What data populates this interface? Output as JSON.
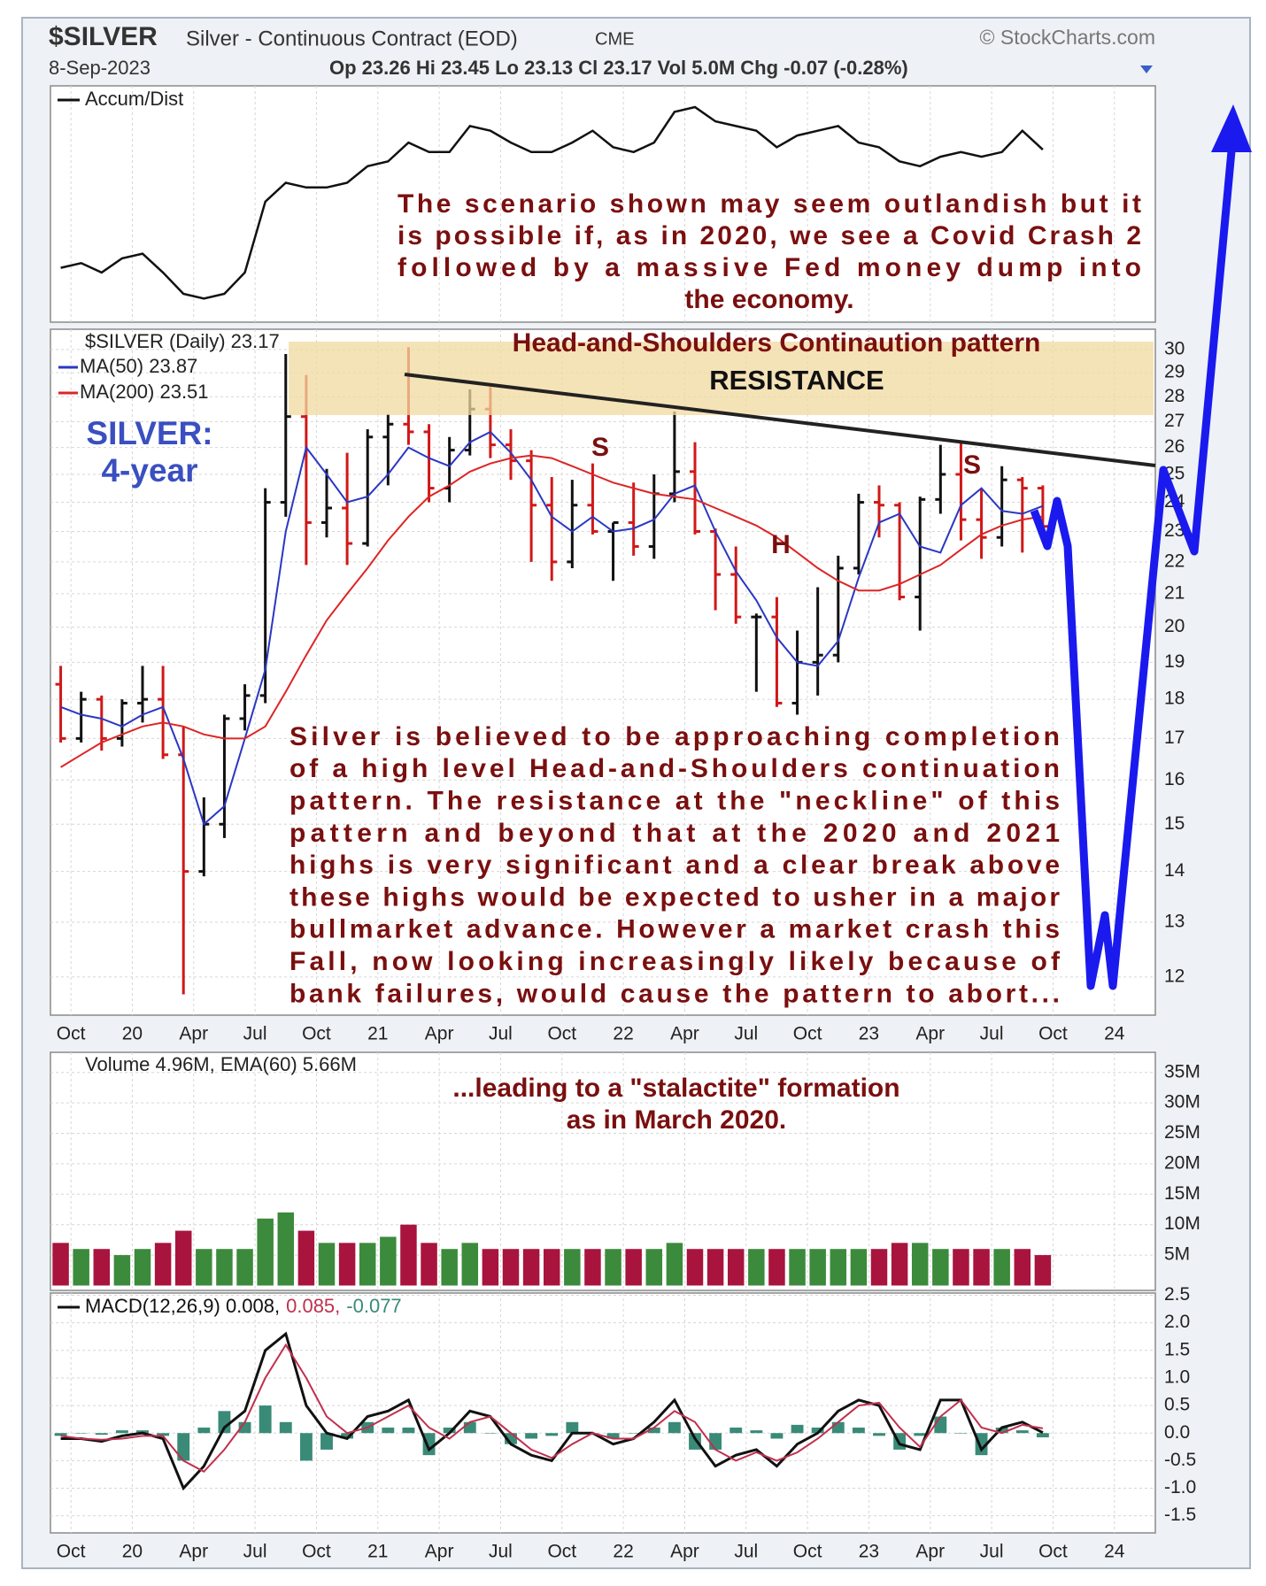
{
  "header": {
    "symbol": "$SILVER",
    "description": "Silver - Continuous Contract (EOD)",
    "exchange": "CME",
    "source": "© StockCharts.com",
    "date": "8-Sep-2023",
    "quote": "Op 23.26 Hi 23.45 Lo 23.13 Cl 23.17 Vol 5.0M Chg -0.07 (-0.28%)"
  },
  "annotations": {
    "scenario": [
      "The scenario shown may seem outlandish but it",
      "is possible if, as in 2020, we see a Covid Crash 2",
      "followed by a massive Fed money dump into",
      "the economy."
    ],
    "pattern_title": "Head-and-Shoulders Continaution pattern",
    "resistance": "RESISTANCE",
    "left_shoulder": "S",
    "head": "H",
    "right_shoulder": "S",
    "silver_label": [
      "SILVER:",
      "4-year"
    ],
    "commentary": [
      "Silver is believed to be approaching completion",
      "of a high level Head-and-Shoulders continuation",
      "pattern. The resistance at the \"neckline\" of this",
      "pattern and beyond that at the 2020 and 2021",
      "highs is very significant and a clear break above",
      "these highs would be expected to usher in a major",
      "bullmarket advance. However a market crash this",
      "Fall, now looking increasingly likely because of",
      "bank failures, would cause the pattern to abort..."
    ],
    "stalactite": [
      "...leading to a \"stalactite\" formation",
      "as in March 2020."
    ]
  },
  "time_axis": {
    "x": [
      "2019-09",
      "2019-10",
      "2019-11",
      "2019-12",
      "2020-01",
      "2020-02",
      "2020-03",
      "2020-04",
      "2020-05",
      "2020-06",
      "2020-07",
      "2020-08",
      "2020-09",
      "2020-10",
      "2020-11",
      "2020-12",
      "2021-01",
      "2021-02",
      "2021-03",
      "2021-04",
      "2021-05",
      "2021-06",
      "2021-07",
      "2021-08",
      "2021-09",
      "2021-10",
      "2021-11",
      "2021-12",
      "2022-01",
      "2022-02",
      "2022-03",
      "2022-04",
      "2022-05",
      "2022-06",
      "2022-07",
      "2022-08",
      "2022-09",
      "2022-10",
      "2022-11",
      "2022-12",
      "2023-01",
      "2023-02",
      "2023-03",
      "2023-04",
      "2023-05",
      "2023-06",
      "2023-07",
      "2023-08",
      "2023-09"
    ],
    "xlim": [
      "2019-09",
      "2024-03"
    ],
    "xticks": [
      {
        "value": "2019-10",
        "label": "Oct"
      },
      {
        "value": "2020-01",
        "label": "20"
      },
      {
        "value": "2020-04",
        "label": "Apr"
      },
      {
        "value": "2020-07",
        "label": "Jul"
      },
      {
        "value": "2020-10",
        "label": "Oct"
      },
      {
        "value": "2021-01",
        "label": "21"
      },
      {
        "value": "2021-04",
        "label": "Apr"
      },
      {
        "value": "2021-07",
        "label": "Jul"
      },
      {
        "value": "2021-10",
        "label": "Oct"
      },
      {
        "value": "2022-01",
        "label": "22"
      },
      {
        "value": "2022-04",
        "label": "Apr"
      },
      {
        "value": "2022-07",
        "label": "Jul"
      },
      {
        "value": "2022-10",
        "label": "Oct"
      },
      {
        "value": "2023-01",
        "label": "23"
      },
      {
        "value": "2023-04",
        "label": "Apr"
      },
      {
        "value": "2023-07",
        "label": "Jul"
      },
      {
        "value": "2023-10",
        "label": "Oct"
      },
      {
        "value": "2024-01",
        "label": "24"
      }
    ]
  },
  "chart_data": [
    {
      "type": "line",
      "name": "Accum/Dist",
      "color": "#111111",
      "ylim": [
        0,
        100
      ],
      "values": [
        23,
        25,
        21,
        27,
        29,
        21,
        12,
        10,
        12,
        21,
        51,
        59,
        57,
        57,
        59,
        66,
        68,
        76,
        72,
        72,
        83,
        81,
        76,
        72,
        72,
        76,
        81,
        74,
        72,
        76,
        89,
        91,
        85,
        83,
        81,
        74,
        79,
        81,
        83,
        76,
        74,
        68,
        66,
        70,
        72,
        70,
        72,
        81,
        73
      ]
    },
    {
      "type": "ohlc",
      "name": "$SILVER (Daily) 23.17",
      "log_scale": true,
      "grid": true,
      "up_color": "#111111",
      "down_color": "#d01818",
      "ylim": [
        11.35,
        30.9
      ],
      "yticks": [
        12,
        13,
        14,
        15,
        16,
        17,
        18,
        19,
        20,
        21,
        22,
        23,
        24,
        25,
        26,
        27,
        28,
        29,
        30
      ],
      "open": [
        18.4,
        17.0,
        18.0,
        17.0,
        17.9,
        18.0,
        16.6,
        14.0,
        15.0,
        17.5,
        18.1,
        24.0,
        27.2,
        23.3,
        23.8,
        22.6,
        26.4,
        26.9,
        26.6,
        24.5,
        25.9,
        27.5,
        26.1,
        25.5,
        23.9,
        22.0,
        23.9,
        23.0,
        23.3,
        22.5,
        24.3,
        25.1,
        23.0,
        21.6,
        20.3,
        20.3,
        17.9,
        19.0,
        19.2,
        21.8,
        24.0,
        23.9,
        20.9,
        24.1,
        25.0,
        23.4,
        22.8,
        24.8,
        24.5
      ],
      "high": [
        18.9,
        18.2,
        18.1,
        18.0,
        18.9,
        18.9,
        17.3,
        15.6,
        17.6,
        18.4,
        24.5,
        29.8,
        28.9,
        25.2,
        25.8,
        26.7,
        27.3,
        30.1,
        26.9,
        26.4,
        28.3,
        28.4,
        26.7,
        25.9,
        24.9,
        24.8,
        25.4,
        23.3,
        24.7,
        25.0,
        27.4,
        26.2,
        23.1,
        22.5,
        20.4,
        20.9,
        19.9,
        21.2,
        22.2,
        24.3,
        24.6,
        24.0,
        24.2,
        26.1,
        26.2,
        24.5,
        25.3,
        24.9,
        24.6
      ],
      "low": [
        16.9,
        16.9,
        16.7,
        16.8,
        17.4,
        16.5,
        11.7,
        13.9,
        14.7,
        17.2,
        17.9,
        23.5,
        21.9,
        22.8,
        21.9,
        22.5,
        24.6,
        26.1,
        24.0,
        24.0,
        25.7,
        25.6,
        24.8,
        22.0,
        21.4,
        21.8,
        22.9,
        21.4,
        22.2,
        22.1,
        24.0,
        22.9,
        20.5,
        20.1,
        18.2,
        17.8,
        17.6,
        18.1,
        19.0,
        21.6,
        22.8,
        20.8,
        19.9,
        23.6,
        22.7,
        22.1,
        22.5,
        22.3,
        23.1
      ],
      "close": [
        17.0,
        18.0,
        17.0,
        17.9,
        18.0,
        16.6,
        14.0,
        15.0,
        17.5,
        18.1,
        24.0,
        27.2,
        23.3,
        23.8,
        22.6,
        26.4,
        26.9,
        26.6,
        24.5,
        25.9,
        27.5,
        26.1,
        25.5,
        23.9,
        22.0,
        23.9,
        23.0,
        23.3,
        22.5,
        24.3,
        25.1,
        23.0,
        21.6,
        20.3,
        20.3,
        17.9,
        19.0,
        19.2,
        21.8,
        24.0,
        23.9,
        20.9,
        24.1,
        25.0,
        23.4,
        22.8,
        24.8,
        24.5,
        23.17
      ],
      "series": [
        {
          "name": "MA(50) 23.87",
          "color": "#2a37c4",
          "values": [
            17.8,
            17.6,
            17.5,
            17.3,
            17.6,
            17.8,
            16.5,
            15.0,
            15.4,
            17.0,
            18.8,
            23.0,
            26.0,
            25.0,
            24.0,
            24.2,
            25.0,
            26.0,
            25.6,
            25.3,
            26.2,
            26.6,
            25.8,
            24.8,
            23.5,
            23.0,
            23.5,
            23.0,
            23.1,
            23.4,
            24.3,
            24.6,
            23.0,
            21.7,
            20.8,
            19.7,
            19.0,
            18.9,
            19.6,
            21.5,
            23.3,
            23.6,
            22.5,
            22.3,
            23.9,
            24.5,
            23.7,
            23.6,
            23.87
          ]
        },
        {
          "name": "MA(200) 23.51",
          "color": "#dd2525",
          "values": [
            16.3,
            16.6,
            16.9,
            17.1,
            17.3,
            17.4,
            17.3,
            17.1,
            17.0,
            17.0,
            17.3,
            18.2,
            19.2,
            20.2,
            21.0,
            21.8,
            22.7,
            23.5,
            24.2,
            24.6,
            25.1,
            25.4,
            25.6,
            25.7,
            25.6,
            25.3,
            25.0,
            24.7,
            24.5,
            24.3,
            24.2,
            24.1,
            23.8,
            23.5,
            23.2,
            22.8,
            22.3,
            21.8,
            21.4,
            21.1,
            21.1,
            21.3,
            21.6,
            21.9,
            22.4,
            22.9,
            23.2,
            23.4,
            23.51
          ]
        }
      ]
    },
    {
      "type": "bar",
      "name": "Volume 4.96M, EMA(60) 5.66M",
      "up_color": "#3c8a3c",
      "down_color": "#a8143e",
      "grid": true,
      "ylim": [
        -0.8,
        38.3
      ],
      "yticks": [
        {
          "value": 35,
          "label": "35M"
        },
        {
          "value": 30,
          "label": "30M"
        },
        {
          "value": 25,
          "label": "25M"
        },
        {
          "value": 20,
          "label": "20M"
        },
        {
          "value": 15,
          "label": "15M"
        },
        {
          "value": 10,
          "label": "10M"
        },
        {
          "value": 5,
          "label": "5M"
        }
      ],
      "values": [
        7,
        6,
        6,
        5,
        6,
        7,
        9,
        6,
        6,
        6,
        11,
        12,
        9,
        7,
        7,
        7,
        8,
        10,
        7,
        6,
        7,
        6,
        6,
        6,
        6,
        6,
        6,
        6,
        6,
        6,
        7,
        6,
        6,
        6,
        6,
        6,
        6,
        6,
        6,
        6,
        6,
        7,
        7,
        6,
        6,
        6,
        6,
        6,
        5
      ]
    },
    {
      "type": "macd",
      "grid": true,
      "ylim": [
        -1.81,
        2.54
      ],
      "yticks": [
        2.5,
        {
          "value": 2,
          "label": "2.0"
        },
        1.5,
        {
          "value": 1,
          "label": "1.0"
        },
        0.5,
        {
          "value": 0,
          "label": "0.0"
        },
        -0.5,
        {
          "value": -1,
          "label": "-1.0"
        },
        -1.5
      ],
      "series": [
        {
          "name": "MACD(12,26,9) 0.008,",
          "color": "#111111",
          "values": [
            -0.1,
            -0.1,
            -0.15,
            -0.05,
            0.0,
            -0.1,
            -1.0,
            -0.6,
            0.1,
            0.4,
            1.5,
            1.8,
            0.5,
            0.0,
            -0.1,
            0.3,
            0.4,
            0.6,
            -0.3,
            0.0,
            0.4,
            0.3,
            -0.2,
            -0.4,
            -0.5,
            0.0,
            0.0,
            -0.2,
            -0.1,
            0.2,
            0.6,
            -0.1,
            -0.6,
            -0.4,
            -0.3,
            -0.6,
            -0.2,
            0.0,
            0.4,
            0.6,
            0.5,
            -0.2,
            -0.3,
            0.6,
            0.6,
            -0.3,
            0.1,
            0.2,
            0.008
          ]
        },
        {
          "name": "0.085,",
          "color": "#c0304e",
          "values": [
            -0.05,
            -0.1,
            -0.12,
            -0.1,
            -0.05,
            -0.05,
            -0.5,
            -0.7,
            -0.3,
            0.2,
            1.0,
            1.6,
            1.0,
            0.3,
            0.0,
            0.1,
            0.3,
            0.5,
            0.1,
            -0.1,
            0.2,
            0.3,
            0.0,
            -0.3,
            -0.45,
            -0.2,
            0.0,
            -0.1,
            -0.1,
            0.1,
            0.4,
            0.2,
            -0.3,
            -0.5,
            -0.35,
            -0.5,
            -0.35,
            -0.1,
            0.2,
            0.5,
            0.55,
            0.1,
            -0.25,
            0.3,
            0.6,
            0.1,
            0.0,
            0.15,
            0.085
          ]
        }
      ],
      "histogram": {
        "name": "-0.077",
        "color": "#3a8a78",
        "values": [
          -0.05,
          0,
          -0.03,
          0.05,
          0.05,
          -0.05,
          -0.5,
          0.1,
          0.4,
          0.2,
          0.5,
          0.2,
          -0.5,
          -0.3,
          -0.1,
          0.2,
          0.1,
          0.1,
          -0.4,
          0.1,
          0.2,
          0,
          -0.2,
          -0.1,
          -0.05,
          0.2,
          0,
          -0.1,
          0,
          0.1,
          0.2,
          -0.3,
          -0.3,
          0.1,
          0.05,
          -0.1,
          0.15,
          0.1,
          0.2,
          0.1,
          -0.05,
          -0.3,
          -0.05,
          0.3,
          0,
          -0.4,
          0.1,
          0.05,
          -0.077
        ]
      }
    }
  ]
}
